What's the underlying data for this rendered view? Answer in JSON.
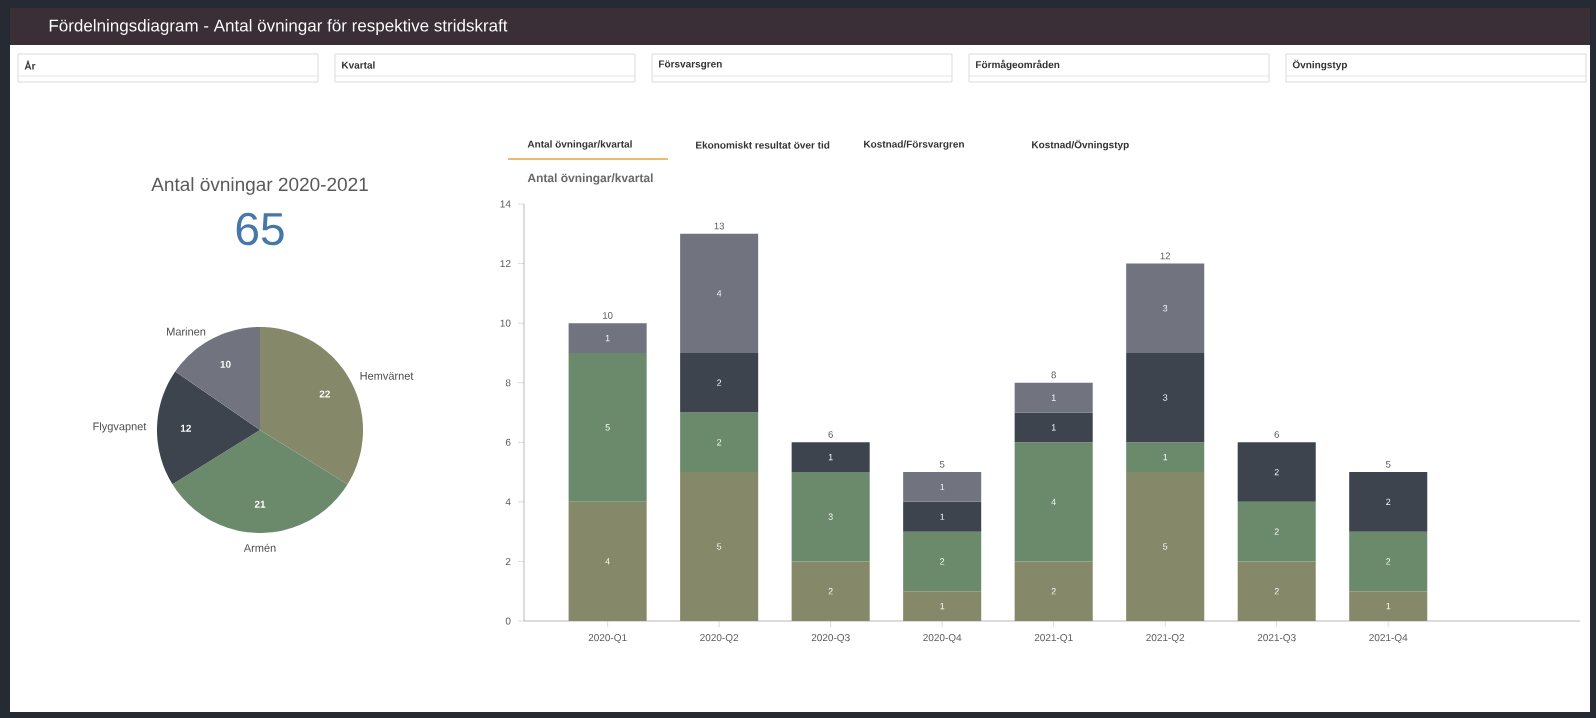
{
  "chart_data": [
    {
      "type": "other",
      "title": "Fördelningsdiagram - Antal övningar för respektive stridskraft",
      "annotations": [
        "År",
        "Kvartal",
        "Försvarsgren",
        "Förmågeområden",
        "Övningstyp"
      ]
    },
    {
      "type": "pie",
      "title": "Antal övningar 2020-2021",
      "subtitle": "65",
      "categories": [
        "Hemvärnet",
        "Armén",
        "Flygvapnet",
        "Marinen"
      ],
      "values": [
        22,
        21,
        12,
        10
      ],
      "colors": [
        "#858869",
        "#6b8a6c",
        "#3e444e",
        "#71737f"
      ],
      "data_labels": true
    },
    {
      "type": "bar",
      "title": "Antal övningar/kvartal",
      "stacked": true,
      "annotations": [
        "Antal övningar/kvartal",
        "Ekonomiskt resultat över tid",
        "Kostnad/Försvargren",
        "Kostnad/Övningstyp"
      ],
      "categories": [
        "2020-Q1",
        "2020-Q2",
        "2020-Q3",
        "2020-Q4",
        "2021-Q1",
        "2021-Q2",
        "2021-Q3",
        "2021-Q4"
      ],
      "series": [
        {
          "color": "#858869",
          "values": [
            4,
            5,
            2,
            1,
            2,
            5,
            2,
            1
          ]
        },
        {
          "color": "#6b8a6c",
          "values": [
            5,
            2,
            3,
            2,
            4,
            1,
            2,
            2
          ]
        },
        {
          "color": "#3e444e",
          "values": [
            null,
            2,
            1,
            1,
            1,
            3,
            2,
            2
          ]
        },
        {
          "color": "#71737f",
          "values": [
            1,
            4,
            null,
            1,
            1,
            3,
            null,
            null
          ]
        }
      ],
      "totals": [
        "10",
        "13",
        "6",
        "5",
        "8",
        "12",
        "6",
        "5"
      ],
      "data_labels": true,
      "ylim": [
        0,
        14
      ],
      "yticks": [
        0,
        2,
        4,
        6,
        8,
        10,
        12,
        14
      ]
    }
  ]
}
